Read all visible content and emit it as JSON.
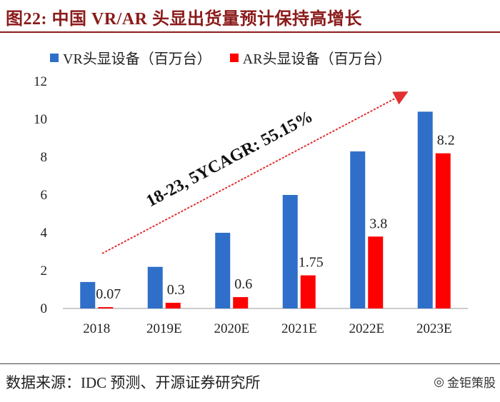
{
  "header": {
    "title": "图22:  中国 VR/AR 头显出货量预计保持高增长"
  },
  "footer": {
    "source": "数据来源：IDC 预测、开源证券研究所",
    "watermark": "金钜策股"
  },
  "colors": {
    "vr": "#2f6fc9",
    "ar": "#ff0000",
    "title": "#8b1a1a",
    "arrow": "#e03030"
  },
  "chart_data": {
    "type": "bar",
    "title": "",
    "categories": [
      "2018",
      "2019E",
      "2020E",
      "2021E",
      "2022E",
      "2023E"
    ],
    "series": [
      {
        "name": "VR头显设备（百万台）",
        "values": [
          1.4,
          2.2,
          4.0,
          6.0,
          8.3,
          10.4
        ],
        "labels": [
          "",
          "",
          "",
          "",
          "",
          ""
        ]
      },
      {
        "name": "AR头显设备（百万台）",
        "values": [
          0.07,
          0.3,
          0.6,
          1.75,
          3.8,
          8.2
        ],
        "labels": [
          "0.07",
          "0.3",
          "0.6",
          "1.75",
          "3.8",
          "8.2"
        ]
      }
    ],
    "ylim": [
      0,
      12
    ],
    "yticks": [
      0,
      2,
      4,
      6,
      8,
      10,
      12
    ],
    "xlabel": "",
    "ylabel": "",
    "annotation": "18-23, 5YCAGR: 55.15%",
    "grid": false,
    "legend_position": "top"
  }
}
